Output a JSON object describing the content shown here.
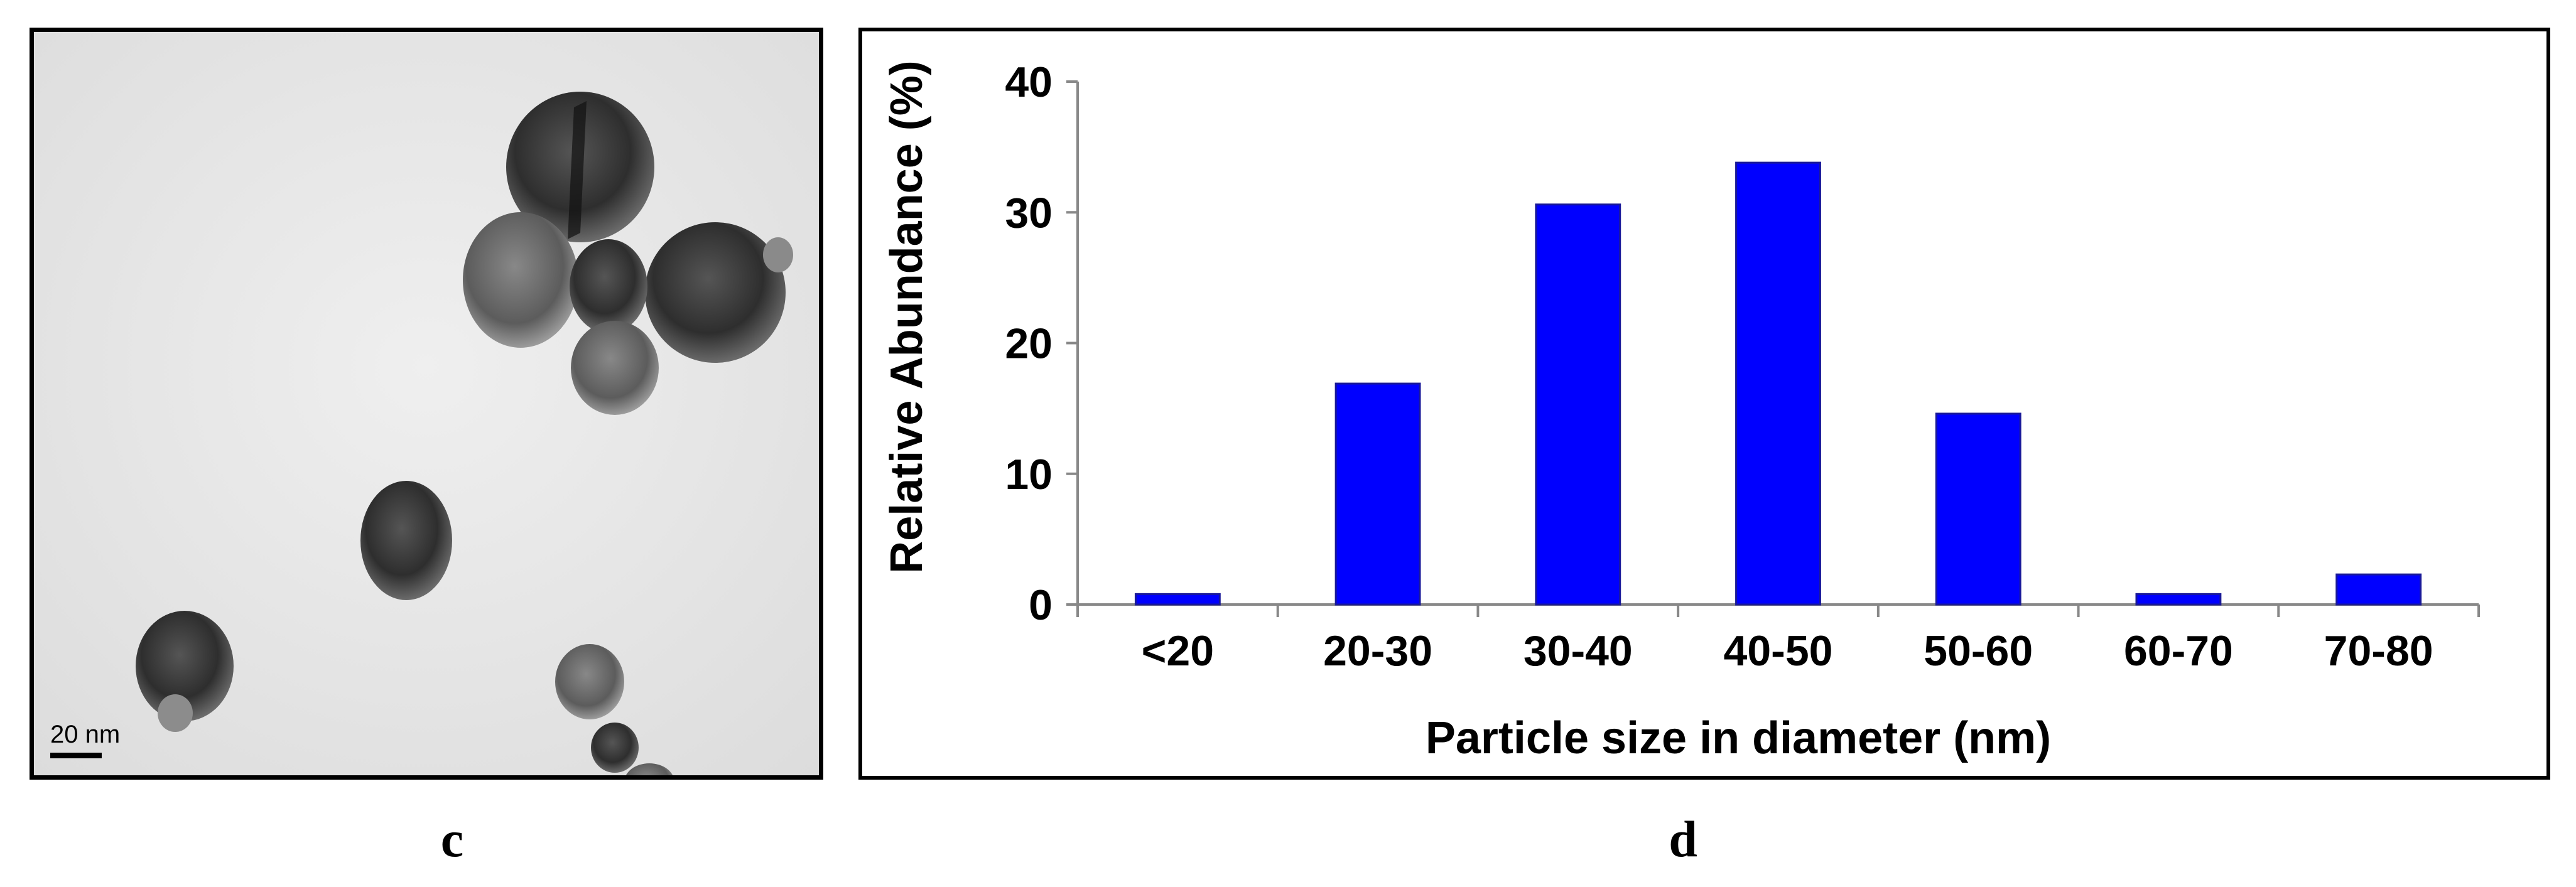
{
  "panels": {
    "c_label": "c",
    "d_label": "d"
  },
  "micrograph": {
    "scale_bar_label": "20 nm",
    "background_color": "#e9e9e9"
  },
  "chart_data": {
    "type": "bar",
    "categories": [
      "<20",
      "20-30",
      "30-40",
      "40-50",
      "50-60",
      "60-70",
      "70-80"
    ],
    "values": [
      0.8,
      16.9,
      30.6,
      33.8,
      14.6,
      0.8,
      2.3
    ],
    "title": "",
    "xlabel": "Particle size in diameter (nm)",
    "ylabel": "Relative Abundance (%)",
    "ylim": [
      0,
      40
    ],
    "yticks": [
      0,
      10,
      20,
      30,
      40
    ],
    "bar_color": "#0000ff",
    "grid": false,
    "legend": "none"
  }
}
